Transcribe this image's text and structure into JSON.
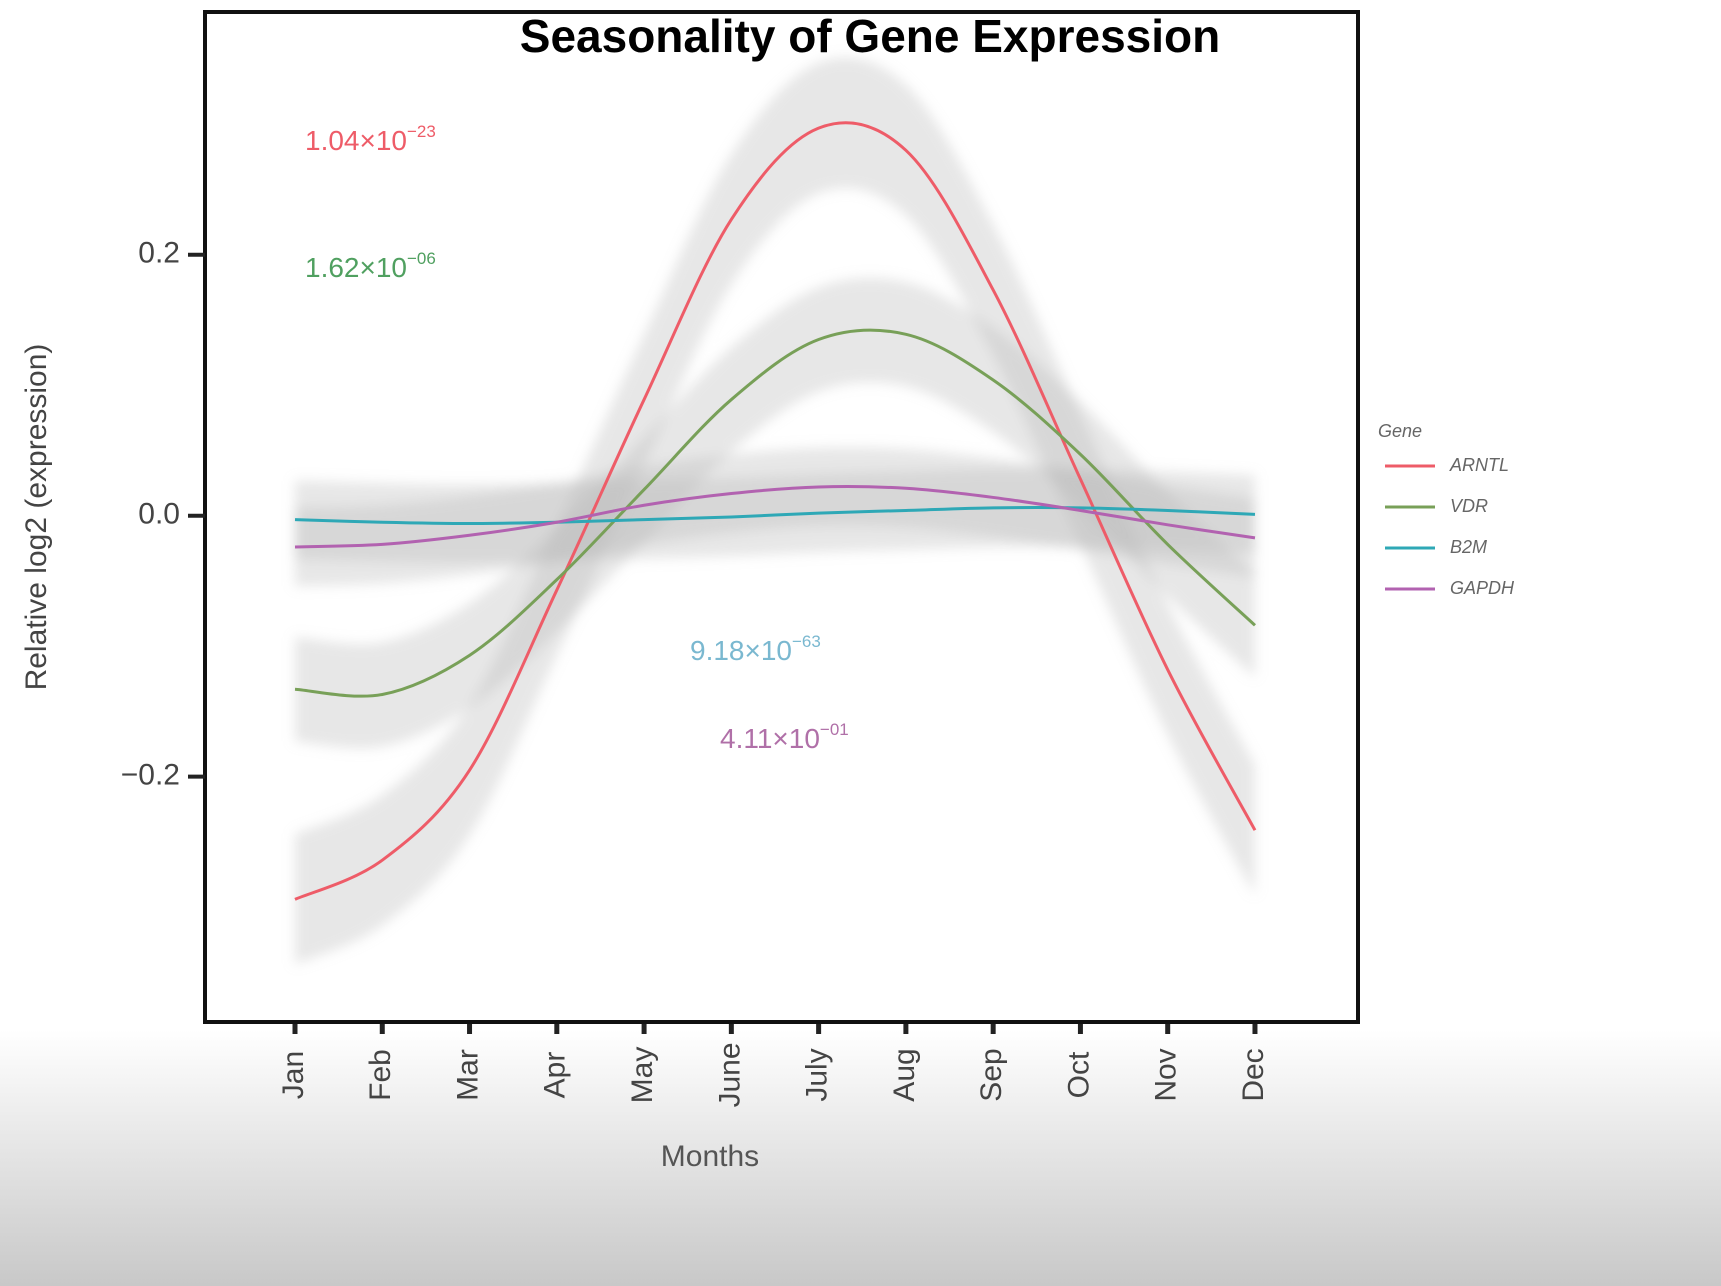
{
  "chart_data": {
    "type": "line",
    "title": "Seasonality of Gene Expression",
    "x_label": "Months",
    "y_label": "Relative log2 (expression)",
    "categories": [
      "Jan",
      "Feb",
      "Mar",
      "Apr",
      "May",
      "June",
      "July",
      "Aug",
      "Sep",
      "Oct",
      "Nov",
      "Dec"
    ],
    "series": [
      {
        "name": "ARNTL",
        "color": "#ee5c68",
        "ci": 0.05,
        "values": [
          -0.294,
          -0.264,
          -0.195,
          -0.057,
          0.089,
          0.227,
          0.297,
          0.28,
          0.173,
          0.028,
          -0.118,
          -0.241
        ]
      },
      {
        "name": "VDR",
        "color": "#78a058",
        "ci": 0.04,
        "values": [
          -0.133,
          -0.137,
          -0.107,
          -0.049,
          0.02,
          0.089,
          0.135,
          0.139,
          0.104,
          0.047,
          -0.022,
          -0.084
        ]
      },
      {
        "name": "B2M",
        "color": "#2ea8b6",
        "ci": 0.03,
        "values": [
          -0.003,
          -0.005,
          -0.006,
          -0.005,
          -0.003,
          -0.001,
          0.002,
          0.004,
          0.006,
          0.006,
          0.004,
          0.001
        ]
      },
      {
        "name": "GAPDH",
        "color": "#b262b0",
        "ci": 0.03,
        "values": [
          -0.024,
          -0.022,
          -0.015,
          -0.005,
          0.008,
          0.017,
          0.022,
          0.021,
          0.014,
          0.004,
          -0.007,
          -0.017
        ]
      }
    ],
    "ylim": [
      -0.388,
      0.386
    ],
    "yticks": [
      {
        "value": -0.2,
        "label": "−0.2"
      },
      {
        "value": 0,
        "label": "0.0"
      },
      0.2
    ],
    "legend_title": "Gene",
    "legend": "right",
    "annotations": [
      {
        "text": "1.04×10",
        "exponent": "−23",
        "color": "#ee5c68"
      },
      {
        "text": "1.62×10",
        "exponent": "−06",
        "color": "#50a060"
      },
      {
        "text": "9.18×10",
        "exponent": "−63",
        "color": "#7ab8d0"
      },
      {
        "text": "4.11×10",
        "exponent": "−01",
        "color": "#b070a8"
      }
    ]
  }
}
